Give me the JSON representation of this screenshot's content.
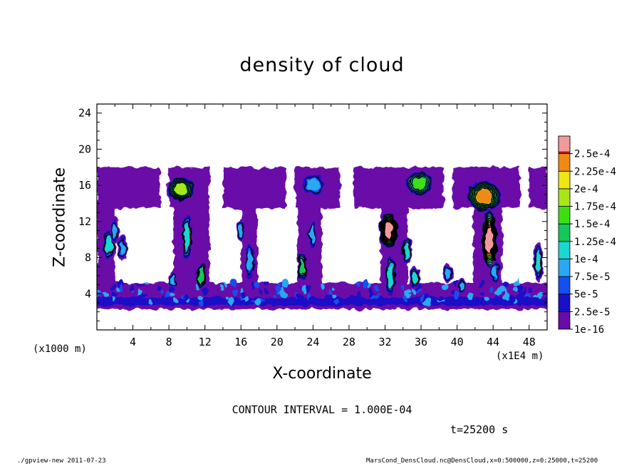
{
  "chart_data": {
    "type": "heatmap",
    "title": "density of cloud",
    "xlabel": "X-coordinate",
    "ylabel": "Z-coordinate",
    "x_unit_left": "(x1000 m)",
    "x_unit_right": "(x1E4 m)",
    "xlim": [
      0,
      50
    ],
    "ylim": [
      0,
      25
    ],
    "x_ticks": [
      4,
      8,
      12,
      16,
      20,
      24,
      28,
      32,
      36,
      40,
      44,
      48
    ],
    "y_ticks": [
      4,
      8,
      12,
      16,
      20,
      24
    ],
    "colorbar": {
      "levels": [
        "1e-16",
        "2.5e-5",
        "5e-5",
        "7.5e-5",
        "1e-4",
        "1.25e-4",
        "1.5e-4",
        "1.75e-4",
        "2e-4",
        "2.25e-4",
        "2.5e-4"
      ],
      "colors": [
        "#6a0aa8",
        "#1a10c8",
        "#1450f0",
        "#2aa8f2",
        "#18d8d0",
        "#14c85a",
        "#3ce012",
        "#a8e61a",
        "#f0e614",
        "#f08a14",
        "#f01e1e",
        "#f29a9a"
      ]
    },
    "clouds": [
      {
        "x": 1.3,
        "z": 9.5,
        "w": 0.7,
        "h": 1.8,
        "peak": 4
      },
      {
        "x": 2.0,
        "z": 11.0,
        "w": 0.5,
        "h": 1.5,
        "peak": 3
      },
      {
        "x": 2.8,
        "z": 9.0,
        "w": 0.6,
        "h": 1.5,
        "peak": 3
      },
      {
        "x": 9.3,
        "z": 15.6,
        "w": 1.6,
        "h": 1.4,
        "peak": 7
      },
      {
        "x": 10.0,
        "z": 10.3,
        "w": 0.6,
        "h": 2.8,
        "peak": 4
      },
      {
        "x": 11.6,
        "z": 6.0,
        "w": 0.6,
        "h": 1.5,
        "peak": 5
      },
      {
        "x": 8.5,
        "z": 5.5,
        "w": 0.5,
        "h": 1.0,
        "peak": 3
      },
      {
        "x": 16.0,
        "z": 11.0,
        "w": 0.5,
        "h": 1.2,
        "peak": 3
      },
      {
        "x": 17.0,
        "z": 7.5,
        "w": 0.6,
        "h": 2.2,
        "peak": 3
      },
      {
        "x": 22.8,
        "z": 7.0,
        "w": 0.6,
        "h": 1.6,
        "peak": 5
      },
      {
        "x": 23.9,
        "z": 10.5,
        "w": 0.5,
        "h": 1.8,
        "peak": 3
      },
      {
        "x": 24.0,
        "z": 16.0,
        "w": 1.4,
        "h": 1.3,
        "peak": 3
      },
      {
        "x": 32.4,
        "z": 11.0,
        "w": 1.1,
        "h": 2.0,
        "peak": 11
      },
      {
        "x": 32.6,
        "z": 6.0,
        "w": 0.7,
        "h": 2.4,
        "peak": 4
      },
      {
        "x": 34.4,
        "z": 8.8,
        "w": 0.6,
        "h": 1.6,
        "peak": 4
      },
      {
        "x": 35.8,
        "z": 16.2,
        "w": 1.6,
        "h": 1.4,
        "peak": 6
      },
      {
        "x": 35.3,
        "z": 5.8,
        "w": 0.6,
        "h": 1.3,
        "peak": 4
      },
      {
        "x": 39.0,
        "z": 6.3,
        "w": 0.6,
        "h": 1.0,
        "peak": 3
      },
      {
        "x": 43.0,
        "z": 14.8,
        "w": 2.0,
        "h": 1.8,
        "peak": 9
      },
      {
        "x": 43.6,
        "z": 10.0,
        "w": 0.9,
        "h": 3.4,
        "peak": 11
      },
      {
        "x": 44.2,
        "z": 6.5,
        "w": 0.6,
        "h": 1.4,
        "peak": 3
      },
      {
        "x": 49.0,
        "z": 7.5,
        "w": 0.6,
        "h": 2.2,
        "peak": 4
      },
      {
        "x": 40.5,
        "z": 4.8,
        "w": 0.5,
        "h": 0.8,
        "peak": 3
      }
    ]
  },
  "annotations": {
    "contour_interval": "CONTOUR INTERVAL = 1.000E-04",
    "time": "t=25200 s",
    "footer_left": "./gpview-new  2011-07-23",
    "footer_right": "MarsCond_DensCloud.nc@DensCloud,x=0:500000,z=0:25000,t=25200"
  }
}
